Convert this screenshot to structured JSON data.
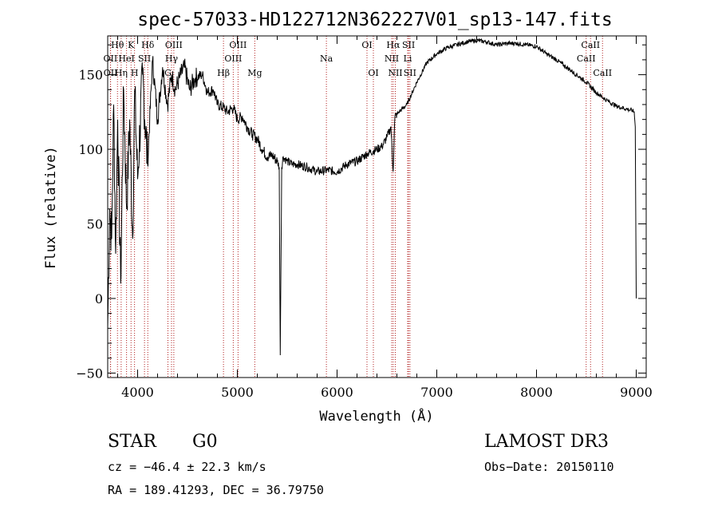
{
  "chart_data": {
    "type": "line",
    "title": "spec-57033-HD122712N362227V01_sp13-147.fits",
    "xlabel": "Wavelength (Å)",
    "ylabel": "Flux (relative)",
    "xlim": [
      3700,
      9100
    ],
    "ylim": [
      -53,
      176
    ],
    "xticks": [
      4000,
      5000,
      6000,
      7000,
      8000,
      9000
    ],
    "yticks": [
      -50,
      0,
      50,
      100,
      150
    ],
    "series": [
      {
        "name": "flux",
        "x": [
          3700,
          3720,
          3740,
          3760,
          3780,
          3800,
          3830,
          3860,
          3890,
          3920,
          3950,
          3970,
          4000,
          4050,
          4100,
          4150,
          4200,
          4250,
          4300,
          4340,
          4380,
          4420,
          4470,
          4520,
          4580,
          4650,
          4700,
          4760,
          4800,
          4860,
          4900,
          4960,
          5000,
          5050,
          5100,
          5150,
          5200,
          5250,
          5300,
          5350,
          5400,
          5420,
          5430,
          5445,
          5460,
          5500,
          5550,
          5600,
          5700,
          5800,
          5900,
          6000,
          6100,
          6200,
          6300,
          6400,
          6450,
          6500,
          6540,
          6562,
          6580,
          6620,
          6700,
          6800,
          6900,
          7000,
          7100,
          7200,
          7300,
          7400,
          7500,
          7600,
          7700,
          7800,
          7900,
          8000,
          8100,
          8200,
          8300,
          8400,
          8500,
          8600,
          8700,
          8800,
          8900,
          8960,
          8980,
          8990,
          9000
        ],
        "y": [
          -20,
          60,
          40,
          130,
          30,
          120,
          10,
          140,
          60,
          120,
          40,
          140,
          80,
          150,
          90,
          160,
          120,
          155,
          130,
          150,
          140,
          148,
          155,
          140,
          148,
          150,
          138,
          140,
          130,
          128,
          125,
          128,
          120,
          122,
          115,
          110,
          107,
          100,
          95,
          96,
          92,
          88,
          -38,
          88,
          95,
          92,
          90,
          90,
          88,
          85,
          86,
          85,
          90,
          92,
          97,
          100,
          102,
          108,
          115,
          85,
          122,
          125,
          130,
          145,
          158,
          164,
          168,
          170,
          172,
          173,
          172,
          170,
          171,
          171,
          170,
          169,
          164,
          160,
          155,
          150,
          145,
          138,
          133,
          129,
          127,
          126,
          125,
          115,
          0
        ]
      }
    ],
    "spectral_lines": [
      {
        "name": "Hθ",
        "wave": 3798,
        "row": 1
      },
      {
        "name": "OII",
        "wave": 3727,
        "row": 2
      },
      {
        "name": "OII",
        "wave": 3729,
        "row": 3
      },
      {
        "name": "Hη",
        "wave": 3835,
        "row": 3
      },
      {
        "name": "K",
        "wave": 3934,
        "row": 1
      },
      {
        "name": "HeI",
        "wave": 3889,
        "row": 2
      },
      {
        "name": "H",
        "wave": 3969,
        "row": 3
      },
      {
        "name": "Hδ",
        "wave": 4102,
        "row": 1
      },
      {
        "name": "SII",
        "wave": 4069,
        "row": 2
      },
      {
        "name": "OIII",
        "wave": 4363,
        "row": 1
      },
      {
        "name": "Hγ",
        "wave": 4340,
        "row": 2
      },
      {
        "name": "G",
        "wave": 4304,
        "row": 3
      },
      {
        "name": "Hβ",
        "wave": 4861,
        "row": 3
      },
      {
        "name": "OIII",
        "wave": 5007,
        "row": 1
      },
      {
        "name": "OIII",
        "wave": 4959,
        "row": 2
      },
      {
        "name": "Mg",
        "wave": 5175,
        "row": 3
      },
      {
        "name": "Na",
        "wave": 5893,
        "row": 2
      },
      {
        "name": "OI",
        "wave": 6300,
        "row": 1
      },
      {
        "name": "OI",
        "wave": 6364,
        "row": 3
      },
      {
        "name": "Hα",
        "wave": 6563,
        "row": 1
      },
      {
        "name": "NII",
        "wave": 6548,
        "row": 2
      },
      {
        "name": "NII",
        "wave": 6584,
        "row": 3
      },
      {
        "name": "SII",
        "wave": 6717,
        "row": 1
      },
      {
        "name": "Li",
        "wave": 6708,
        "row": 2
      },
      {
        "name": "SII",
        "wave": 6731,
        "row": 3
      },
      {
        "name": "CaII",
        "wave": 8542,
        "row": 1
      },
      {
        "name": "CaII",
        "wave": 8498,
        "row": 2
      },
      {
        "name": "CaII",
        "wave": 8662,
        "row": 3
      }
    ]
  },
  "info": {
    "class": "STAR",
    "subclass": "G0",
    "survey": "LAMOST DR3",
    "cz": "cz = −46.4 ± 22.3 km/s",
    "obsdate": "Obs−Date: 20150110",
    "radec": "RA = 189.41293, DEC =  36.79750"
  },
  "colors": {
    "spectrum": "#000000",
    "line_markers": "#b22222"
  }
}
